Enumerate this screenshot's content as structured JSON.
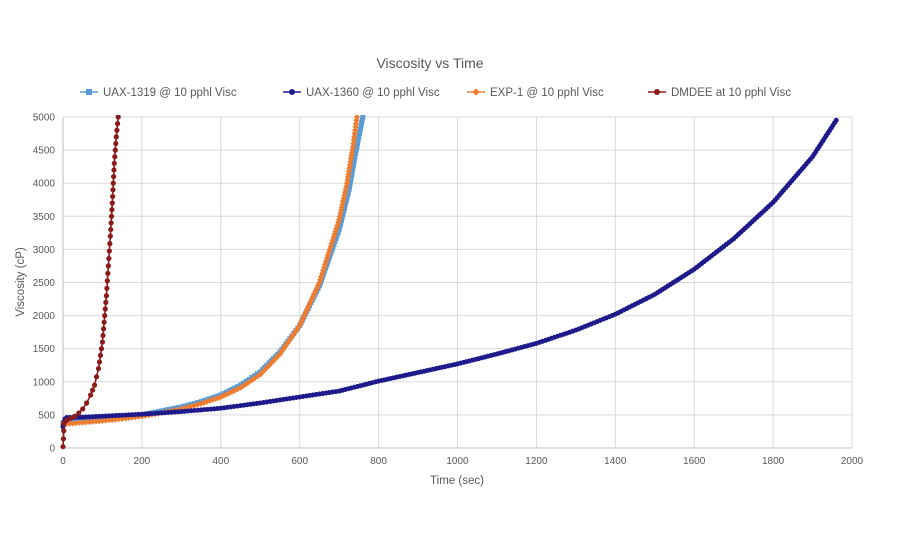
{
  "chart_data": {
    "type": "scatter",
    "title": "Viscosity vs Time",
    "xlabel": "Time (sec)",
    "ylabel": "Viscosity (cP)",
    "xlim": [
      0,
      2000
    ],
    "ylim": [
      0,
      5000
    ],
    "x_ticks": [
      0,
      200,
      400,
      600,
      800,
      1000,
      1200,
      1400,
      1600,
      1800,
      2000
    ],
    "y_ticks": [
      0,
      500,
      1000,
      1500,
      2000,
      2500,
      3000,
      3500,
      4000,
      4500,
      5000
    ],
    "grid": true,
    "legend_position": "top",
    "series": [
      {
        "name": "UAX-1319 @ 10 pphl Visc",
        "color": "#5b9bd5",
        "marker": "square",
        "x": [
          0,
          50,
          100,
          150,
          200,
          250,
          300,
          350,
          400,
          450,
          500,
          550,
          600,
          650,
          700,
          725,
          740,
          750,
          760
        ],
        "y": [
          380,
          405,
          430,
          460,
          500,
          560,
          620,
          700,
          800,
          950,
          1150,
          1450,
          1850,
          2450,
          3300,
          3900,
          4400,
          4700,
          5000
        ]
      },
      {
        "name": "UAX-1360 @ 10 pphl Visc",
        "color": "#1f1a8c",
        "marker": "circle",
        "x": [
          0,
          5,
          10,
          50,
          100,
          200,
          300,
          400,
          500,
          600,
          700,
          800,
          900,
          1000,
          1100,
          1200,
          1300,
          1400,
          1500,
          1600,
          1700,
          1800,
          1900,
          1960
        ],
        "y": [
          320,
          440,
          460,
          465,
          480,
          510,
          550,
          600,
          680,
          770,
          860,
          1010,
          1140,
          1270,
          1420,
          1580,
          1780,
          2020,
          2320,
          2700,
          3160,
          3710,
          4400,
          4950
        ]
      },
      {
        "name": "EXP-1 @ 10 pphl Visc",
        "color": "#ed7d31",
        "marker": "diamond",
        "x": [
          0,
          50,
          100,
          150,
          200,
          250,
          300,
          350,
          400,
          450,
          500,
          550,
          600,
          650,
          700,
          720,
          735,
          745
        ],
        "y": [
          360,
          385,
          410,
          440,
          480,
          530,
          590,
          670,
          770,
          910,
          1110,
          1420,
          1850,
          2500,
          3450,
          4000,
          4550,
          5000
        ]
      },
      {
        "name": "DMDEE at 10 pphl Visc",
        "color": "#8b1a1a",
        "marker": "circle",
        "x": [
          0,
          3,
          10,
          20,
          30,
          40,
          50,
          60,
          70,
          80,
          90,
          100,
          110,
          115,
          120,
          125,
          130,
          135,
          140
        ],
        "y": [
          20,
          380,
          420,
          450,
          480,
          530,
          590,
          680,
          800,
          950,
          1200,
          1600,
          2300,
          2750,
          3200,
          3700,
          4300,
          4700,
          5000
        ]
      }
    ]
  }
}
